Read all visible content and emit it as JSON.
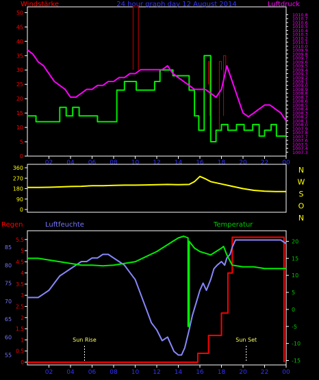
{
  "top_panel": {
    "title": "24 hour graph day 12 August 2014",
    "left_label": "Windstärke",
    "right_label": "Luftdruck"
  },
  "bottom_panel": {
    "label_regen": "Regen",
    "label_luftfeuchte": "Luftfeuchte",
    "label_temperatur": "Temperatur",
    "sunrise_label": "Sun Rise",
    "sunset_label": "Sun Set"
  },
  "colors": {
    "wind": "#00ee00",
    "gust": "#cc0000",
    "pressure": "#ff00ff",
    "direction": "#ffff00",
    "rain": "#ff0000",
    "humidity": "#8888ff",
    "temperature": "#00ee00",
    "frame": "#ffffff",
    "axis_left_top": "#ff0000",
    "axis_right_top": "#ff00ff",
    "axis_humidity": "#7777ff",
    "axis_temp": "#00cc00",
    "axis_time": "#3333ff",
    "sun_marker": "#ffffff"
  },
  "chart_data": [
    {
      "type": "line",
      "title": "24 hour graph day 12 August 2014",
      "x_ticks": [
        "02",
        "04",
        "06",
        "08",
        "10",
        "12",
        "14",
        "16",
        "18",
        "20",
        "22",
        "00"
      ],
      "xlim": [
        0,
        24
      ],
      "left_axis": {
        "label": "Windstärke",
        "ylim": [
          0,
          52
        ],
        "ticks": [
          0,
          5,
          10,
          15,
          20,
          25,
          30,
          35,
          40,
          45,
          50
        ]
      },
      "right_axis": {
        "label": "Luftdruck",
        "ylim": [
          1007.2,
          1011.0
        ],
        "ticks": [
          "1007.3",
          "1007.4",
          "1007.5",
          "1007.6",
          "1007.7",
          "1007.8",
          "1007.9",
          "1008.0",
          "1008.1",
          "1008.2",
          "1008.3",
          "1008.4",
          "1008.5",
          "1008.6",
          "1008.7",
          "1008.8",
          "1008.9",
          "1009.0",
          "1009.1",
          "1009.2",
          "1009.3",
          "1009.4",
          "1009.5",
          "1009.6",
          "1009.7",
          "1009.8",
          "1009.9",
          "1010.0",
          "1010.1",
          "1010.2",
          "1010.3",
          "1010.4",
          "1010.5",
          "1010.6",
          "1010.7",
          "1010.8"
        ]
      },
      "series": [
        {
          "key": "wind",
          "axis": "left",
          "step": true,
          "x": [
            0,
            0.8,
            0.8,
            3.0,
            3.0,
            3.6,
            3.6,
            4.2,
            4.2,
            4.8,
            4.8,
            6.5,
            6.5,
            8.3,
            8.3,
            9.0,
            9.0,
            10.1,
            10.1,
            11.8,
            11.8,
            12.3,
            12.3,
            13.5,
            13.5,
            15.0,
            15.0,
            15.5,
            15.5,
            15.9,
            15.9,
            16.4,
            16.4,
            17.0,
            17.0,
            17.5,
            17.5,
            18.0,
            18.0,
            18.6,
            18.6,
            19.4,
            19.4,
            20.1,
            20.1,
            20.9,
            20.9,
            21.5,
            21.5,
            22.0,
            22.0,
            22.6,
            22.6,
            23.1,
            23.1,
            24.0
          ],
          "y": [
            14,
            14,
            12,
            12,
            17,
            17,
            14,
            14,
            17,
            17,
            14,
            14,
            12,
            12,
            23,
            23,
            26,
            26,
            23,
            23,
            26,
            26,
            30,
            30,
            28,
            28,
            23,
            23,
            14,
            14,
            9,
            9,
            35,
            35,
            5,
            5,
            9,
            9,
            11,
            11,
            9,
            9,
            11,
            11,
            9,
            9,
            11,
            11,
            7,
            7,
            9,
            9,
            11,
            11,
            7,
            7
          ]
        },
        {
          "key": "gust",
          "axis": "left",
          "x": [
            9.8,
            9.8,
            10.3,
            10.3,
            16.8,
            16.8,
            16.9,
            16.9,
            17.8,
            17.8,
            18.0,
            18.0,
            18.2,
            18.2,
            18.4,
            18.4
          ],
          "y": [
            30,
            52,
            52,
            30,
            25,
            33,
            33,
            14,
            9,
            33,
            33,
            30,
            14,
            35,
            35,
            30
          ]
        },
        {
          "key": "pressure",
          "axis": "right",
          "x": [
            0,
            0.5,
            1,
            1.5,
            2,
            2.5,
            3,
            3.5,
            4,
            4.5,
            5,
            5.5,
            6,
            6.5,
            7,
            7.5,
            8,
            8.5,
            9,
            9.5,
            10,
            10.5,
            11,
            11.5,
            12,
            12.5,
            13,
            13.5,
            14,
            14.5,
            15,
            15.5,
            16,
            16.5,
            17,
            17.5,
            18,
            18.5,
            19,
            19.5,
            20,
            20.5,
            21,
            21.5,
            22,
            22.5,
            23,
            23.5,
            24
          ],
          "y": [
            1009.9,
            1009.8,
            1009.6,
            1009.5,
            1009.3,
            1009.1,
            1009.0,
            1008.9,
            1008.7,
            1008.7,
            1008.8,
            1008.9,
            1008.9,
            1009.0,
            1009.0,
            1009.1,
            1009.1,
            1009.2,
            1009.2,
            1009.3,
            1009.3,
            1009.4,
            1009.4,
            1009.4,
            1009.4,
            1009.4,
            1009.5,
            1009.3,
            1009.2,
            1009.1,
            1009.0,
            1008.9,
            1008.9,
            1008.9,
            1008.8,
            1008.7,
            1008.9,
            1009.5,
            1009.1,
            1008.7,
            1008.3,
            1008.2,
            1008.3,
            1008.4,
            1008.5,
            1008.5,
            1008.4,
            1008.3,
            1008.1
          ]
        }
      ]
    },
    {
      "type": "line",
      "x_ticks": [
        "02",
        "04",
        "06",
        "08",
        "10",
        "12",
        "14",
        "16",
        "18",
        "20",
        "22",
        "00"
      ],
      "xlim": [
        0,
        24
      ],
      "right_axis_labels": [
        "N",
        "W",
        "S",
        "O",
        "N"
      ],
      "left_axis": {
        "ylim": [
          0,
          360
        ],
        "ticks": [
          0,
          90,
          180,
          270,
          360
        ]
      },
      "series": [
        {
          "key": "direction",
          "x": [
            0,
            1,
            2,
            3,
            4,
            5,
            6,
            7,
            8,
            9,
            10,
            11,
            12,
            13,
            14,
            15,
            15.5,
            16,
            16.5,
            17,
            18,
            19,
            20,
            21,
            22,
            23,
            24
          ],
          "y": [
            190,
            190,
            192,
            195,
            198,
            200,
            205,
            205,
            208,
            210,
            210,
            212,
            214,
            216,
            214,
            216,
            240,
            285,
            265,
            240,
            220,
            200,
            180,
            165,
            158,
            155,
            155
          ]
        }
      ]
    },
    {
      "type": "line",
      "x_ticks": [
        "02",
        "04",
        "06",
        "08",
        "10",
        "12",
        "14",
        "16",
        "18",
        "20",
        "22",
        "00"
      ],
      "xlim": [
        0,
        24
      ],
      "axes": {
        "regen": {
          "label": "Regen",
          "ylim": [
            0,
            5.8
          ],
          "ticks": [
            "0",
            "0.5",
            "1",
            "1.5",
            "2",
            "2.5",
            "3",
            "3.5",
            "4",
            "4.5",
            "5",
            "5.5"
          ]
        },
        "luftfeuchte": {
          "label": "Luftfeuchte",
          "ylim": [
            53,
            89
          ],
          "ticks": [
            55,
            60,
            65,
            70,
            75,
            80,
            85
          ]
        },
        "temperatur": {
          "label": "Temperatur",
          "ylim": [
            -15.5,
            22.5
          ],
          "ticks": [
            -15,
            -10,
            -5,
            0,
            5,
            10,
            15,
            20
          ]
        }
      },
      "sunrise_hour": 5.3,
      "sunset_hour": 20.3,
      "series": [
        {
          "key": "rain",
          "axis": "regen",
          "step": true,
          "x": [
            0,
            15.8,
            15.8,
            16.8,
            16.8,
            18.0,
            18.0,
            18.6,
            18.6,
            19.0,
            19.0,
            23.8,
            23.8
          ],
          "y": [
            0,
            0,
            0.4,
            0.4,
            1.2,
            1.2,
            2.2,
            2.2,
            4.0,
            4.0,
            5.6,
            5.6,
            0
          ]
        },
        {
          "key": "humidity",
          "axis": "luftfeuchte",
          "x": [
            0,
            1,
            1.5,
            2,
            2.5,
            3,
            3.5,
            4,
            4.5,
            5,
            5.5,
            6,
            6.5,
            7,
            7.5,
            8,
            8.5,
            9,
            9.5,
            10,
            10.5,
            11,
            11.5,
            12,
            12.5,
            13,
            13.3,
            13.6,
            14,
            14.3,
            14.6,
            15,
            15.3,
            15.7,
            16,
            16.3,
            16.6,
            17,
            17.3,
            17.6,
            18,
            18.3,
            18.5,
            18.8,
            19,
            19.3,
            19.6,
            20,
            21,
            22,
            23,
            23.5,
            24
          ],
          "y": [
            71,
            71,
            72,
            73,
            75,
            77,
            78,
            79,
            80,
            81,
            81,
            82,
            82,
            83,
            83,
            82,
            81,
            80,
            78,
            76,
            72,
            68,
            64,
            62,
            59,
            60,
            58,
            56,
            55,
            55,
            57,
            62,
            66,
            70,
            73,
            75,
            73,
            76,
            79,
            80,
            81,
            80,
            82,
            83,
            85,
            87,
            87,
            87,
            87,
            87,
            87,
            87,
            86
          ]
        },
        {
          "key": "temperature",
          "axis": "temperatur",
          "x": [
            0,
            1,
            2,
            3,
            4,
            5,
            6,
            7,
            8,
            9,
            10,
            11,
            12,
            12.5,
            13,
            13.5,
            14,
            14.5,
            14.9,
            14.9,
            15.0,
            15.0,
            15.5,
            16,
            16.5,
            17,
            17.5,
            18,
            18.2,
            18.5,
            19,
            20,
            21,
            22,
            23,
            24
          ],
          "y": [
            15,
            15,
            14.5,
            14,
            13.5,
            13,
            13,
            12.8,
            13,
            13.5,
            14,
            15.5,
            17,
            18,
            19,
            20,
            21,
            21.5,
            21,
            -5,
            -5,
            20,
            18,
            17,
            16.5,
            16,
            17,
            18,
            18.5,
            16,
            13,
            12.5,
            12.5,
            12,
            12,
            12
          ]
        }
      ]
    }
  ]
}
